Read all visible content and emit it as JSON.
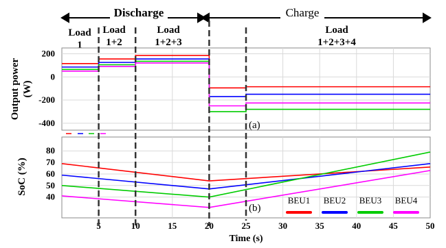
{
  "colors": {
    "BEU1": "#ff0000",
    "BEU2": "#0000ff",
    "BEU3": "#00cc00",
    "BEU4": "#ff00ff",
    "phase_line": "#333333",
    "grid": "#d9d9d9"
  },
  "phases": {
    "discharge_label": "Discharge",
    "charge_label": "Charge",
    "loads": [
      {
        "label_lines": [
          "Load",
          "1"
        ]
      },
      {
        "label_lines": [
          "Load",
          "1+2"
        ]
      },
      {
        "label_lines": [
          "Load",
          "1+2+3"
        ]
      },
      {
        "label_lines": [
          "Load",
          "1+2+3+4"
        ]
      }
    ]
  },
  "chart_data": [
    {
      "type": "line",
      "panel_label": "(a)",
      "ylabel_lines": [
        "Output power",
        "(W)"
      ],
      "xlim": [
        0,
        50
      ],
      "ylim": [
        -460,
        250
      ],
      "yticks": [
        200,
        0,
        -200,
        -400
      ],
      "series": [
        {
          "name": "BEU1",
          "color": "#ff0000",
          "x": [
            0,
            5,
            5,
            10,
            10,
            20,
            20,
            25,
            25,
            50
          ],
          "y": [
            115,
            115,
            155,
            155,
            185,
            185,
            -95,
            -95,
            -85,
            -85
          ]
        },
        {
          "name": "BEU2",
          "color": "#0000ff",
          "x": [
            0,
            5,
            5,
            10,
            10,
            20,
            20,
            25,
            25,
            50
          ],
          "y": [
            85,
            85,
            125,
            125,
            155,
            155,
            -170,
            -170,
            -150,
            -150
          ]
        },
        {
          "name": "BEU3",
          "color": "#00cc00",
          "x": [
            0,
            5,
            5,
            10,
            10,
            20,
            20,
            25,
            25,
            50
          ],
          "y": [
            65,
            65,
            105,
            105,
            135,
            135,
            -300,
            -300,
            -280,
            -280
          ]
        },
        {
          "name": "BEU4",
          "color": "#ff00ff",
          "x": [
            0,
            5,
            5,
            10,
            10,
            20,
            20,
            25,
            25,
            50
          ],
          "y": [
            50,
            50,
            90,
            90,
            120,
            120,
            -250,
            -250,
            -225,
            -225
          ]
        }
      ]
    },
    {
      "type": "line",
      "panel_label": "(b)",
      "ylabel": "SoC (%)",
      "xlabel": "Time (s)",
      "xlim": [
        0,
        50
      ],
      "ylim": [
        22,
        92
      ],
      "yticks": [
        80,
        70,
        60,
        50,
        40
      ],
      "xticks": [
        5,
        10,
        15,
        20,
        25,
        30,
        35,
        40,
        45,
        50
      ],
      "legend": "bottom-right",
      "series": [
        {
          "name": "BEU1",
          "color": "#ff0000",
          "x": [
            0,
            20,
            50
          ],
          "y": [
            69,
            54,
            66
          ]
        },
        {
          "name": "BEU2",
          "color": "#0000ff",
          "x": [
            0,
            20,
            50
          ],
          "y": [
            59,
            47,
            69
          ]
        },
        {
          "name": "BEU3",
          "color": "#00cc00",
          "x": [
            0,
            20,
            50
          ],
          "y": [
            50,
            40,
            79
          ]
        },
        {
          "name": "BEU4",
          "color": "#ff00ff",
          "x": [
            0,
            20,
            50
          ],
          "y": [
            41,
            31,
            63
          ]
        }
      ]
    }
  ]
}
